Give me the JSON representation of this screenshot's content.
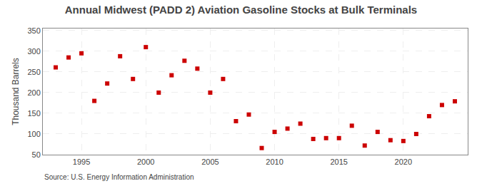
{
  "chart_data": {
    "type": "scatter",
    "title": "Annual Midwest (PADD 2) Aviation Gasoline Stocks at Bulk Terminals",
    "ylabel": "Thousand Barrels",
    "annotations": [
      "Source: U.S. Energy Information Administration"
    ],
    "x": [
      1993,
      1994,
      1995,
      1996,
      1997,
      1998,
      1999,
      2000,
      2001,
      2002,
      2003,
      2004,
      2005,
      2006,
      2007,
      2008,
      2009,
      2010,
      2011,
      2012,
      2013,
      2014,
      2015,
      2016,
      2017,
      2018,
      2019,
      2020,
      2021,
      2022,
      2023,
      2024
    ],
    "values": [
      261,
      285,
      295,
      180,
      222,
      288,
      233,
      310,
      200,
      242,
      277,
      258,
      200,
      233,
      131,
      147,
      66,
      105,
      113,
      125,
      88,
      90,
      90,
      120,
      72,
      105,
      85,
      83,
      100,
      143,
      170,
      179
    ],
    "color": "#cc0000",
    "marker": "square",
    "xlim": [
      1992.0,
      2025.0
    ],
    "ylim": [
      50,
      355
    ],
    "xticks": [
      1995,
      2000,
      2005,
      2010,
      2015,
      2020
    ],
    "yticks": [
      50,
      100,
      150,
      200,
      250,
      300,
      350
    ],
    "grid": true
  }
}
